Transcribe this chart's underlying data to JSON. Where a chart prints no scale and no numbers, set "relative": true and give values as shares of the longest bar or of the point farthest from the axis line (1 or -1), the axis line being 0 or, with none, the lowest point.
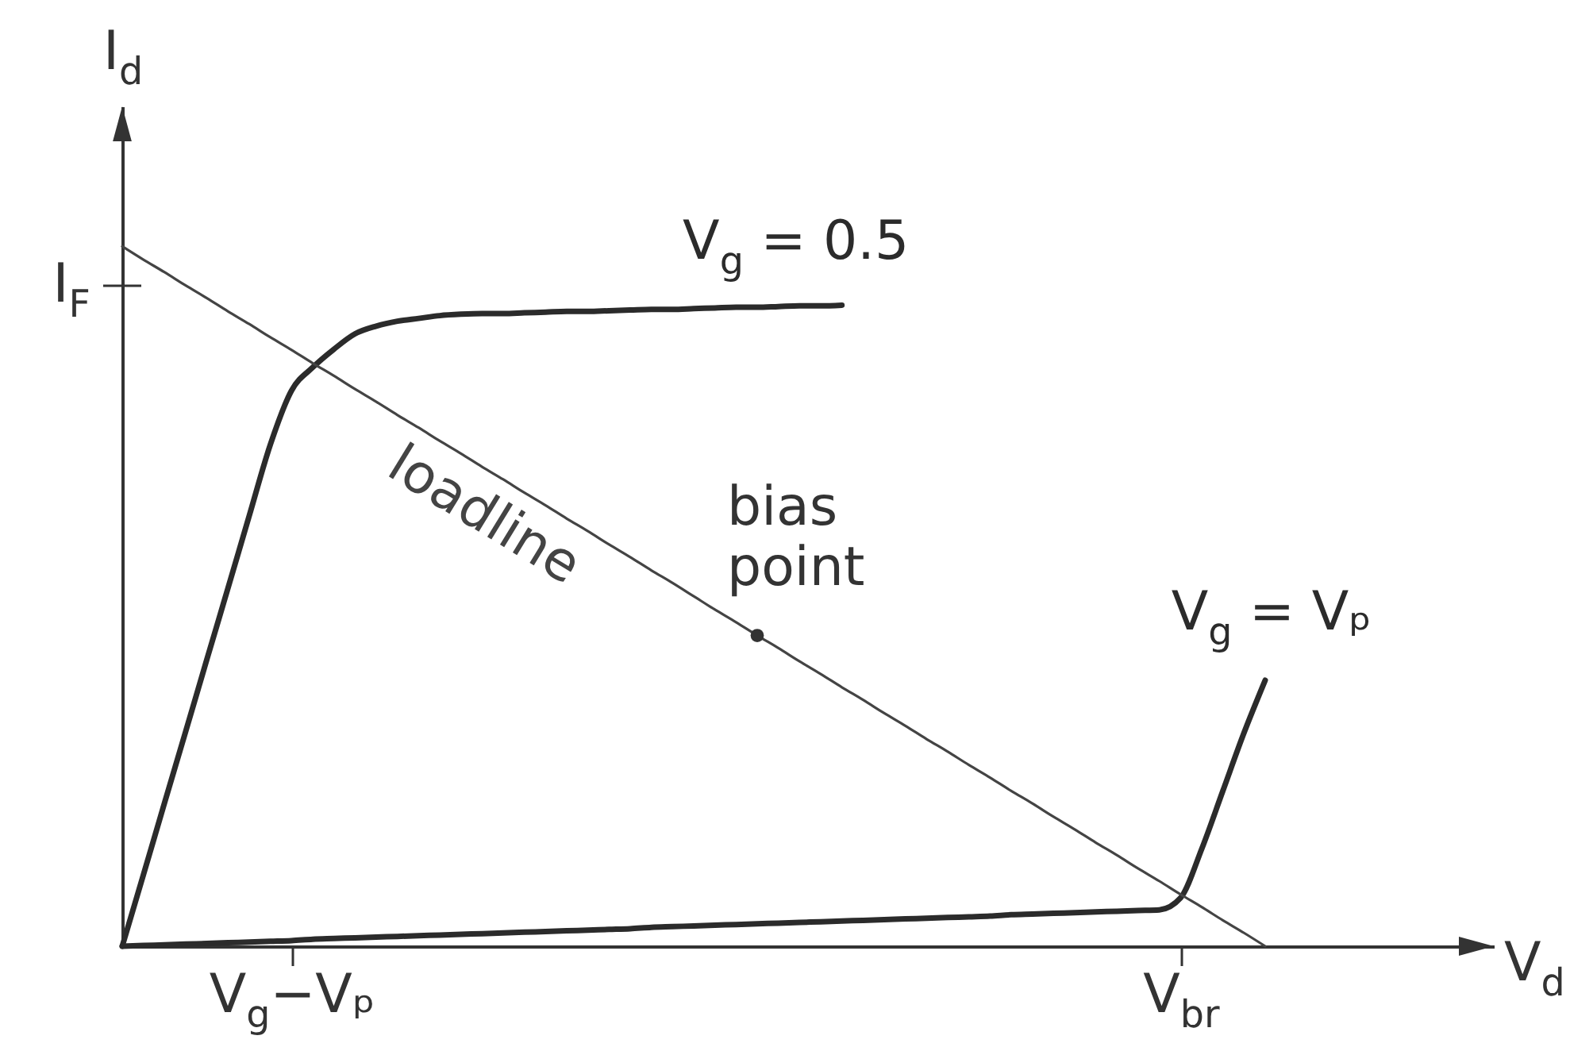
{
  "chart_data": {
    "type": "line",
    "xlabel": "V$_{d}$",
    "ylabel": "I$_{d}$",
    "relative": true,
    "categories": [
      null,
      null,
      null,
      null,
      null,
      null,
      null,
      null,
      "V$_{g}$−Vₚ",
      null,
      null,
      null,
      null,
      null,
      null,
      null,
      null,
      null,
      null,
      null,
      null,
      null,
      null,
      null,
      null,
      null,
      null,
      null,
      null,
      null,
      null,
      null,
      null,
      null,
      null,
      null,
      null,
      null,
      null,
      null,
      null,
      null,
      null,
      null,
      null,
      null,
      null,
      null,
      null,
      null,
      "V$_{br}$",
      null,
      null,
      null,
      null
    ],
    "annotations": [
      "I$_{F}$"
    ],
    "series": [
      {
        "name": "V$_{g}$ = 0.5",
        "color": "#2b2b2b",
        "values": [
          0,
          0.102,
          0.205,
          0.307,
          0.41,
          0.512,
          0.615,
          0.717,
          0.794,
          0.827,
          0.853,
          0.875,
          0.886,
          0.893,
          0.897,
          0.901,
          0.903,
          0.904,
          0.904,
          0.905,
          0.906,
          0.907,
          0.907,
          0.908,
          0.909,
          0.91,
          0.91,
          0.911,
          0.912,
          0.913,
          0.913,
          0.914,
          0.915,
          0.915,
          0.916,
          null,
          null,
          null,
          null,
          null,
          null,
          null,
          null,
          null,
          null,
          null,
          null,
          null,
          null,
          null,
          null,
          null,
          null,
          null,
          null
        ]
      },
      {
        "name": "V$_{g}$ = Vₚ",
        "color": "#2b2b2b",
        "values": [
          0,
          0.001,
          0.002,
          0.003,
          0.004,
          0.005,
          0.006,
          0.007,
          0.008,
          0.01,
          0.011,
          0.012,
          0.013,
          0.014,
          0.015,
          0.016,
          0.017,
          0.018,
          0.019,
          0.02,
          0.021,
          0.022,
          0.023,
          0.024,
          0.025,
          0.027,
          0.028,
          0.029,
          0.03,
          0.031,
          0.032,
          0.033,
          0.034,
          0.035,
          0.036,
          0.037,
          0.038,
          0.039,
          0.04,
          0.041,
          0.042,
          0.043,
          0.045,
          0.046,
          0.047,
          0.048,
          0.049,
          0.05,
          0.051,
          0.052,
          0.069,
          0.139,
          0.222,
          0.305,
          0.38
        ]
      },
      {
        "name": "loadline",
        "color": "#444444",
        "values": [
          1,
          0.981,
          0.963,
          0.944,
          0.926,
          0.907,
          0.889,
          0.87,
          0.852,
          0.833,
          0.815,
          0.796,
          0.778,
          0.759,
          0.741,
          0.722,
          0.704,
          0.685,
          0.667,
          0.648,
          0.63,
          0.611,
          0.593,
          0.574,
          0.556,
          0.537,
          0.519,
          0.5,
          0.481,
          0.463,
          0.444,
          0.426,
          0.407,
          0.389,
          0.37,
          0.352,
          0.333,
          0.315,
          0.296,
          0.278,
          0.259,
          0.241,
          0.222,
          0.204,
          0.185,
          0.167,
          0.148,
          0.13,
          0.111,
          0.093,
          0.074,
          0.056,
          0.037,
          0.019,
          0
        ]
      },
      {
        "name": "bias point",
        "type": "scatter",
        "color": "#333333",
        "values": [
          null,
          null,
          null,
          null,
          null,
          null,
          null,
          null,
          null,
          null,
          null,
          null,
          null,
          null,
          null,
          null,
          null,
          null,
          null,
          null,
          null,
          null,
          null,
          null,
          null,
          null,
          null,
          null,
          null,
          null,
          0.444,
          null,
          null,
          null,
          null,
          null,
          null,
          null,
          null,
          null,
          null,
          null,
          null,
          null,
          null,
          null,
          null,
          null,
          null,
          null,
          null,
          null,
          null,
          null,
          null
        ]
      }
    ]
  }
}
